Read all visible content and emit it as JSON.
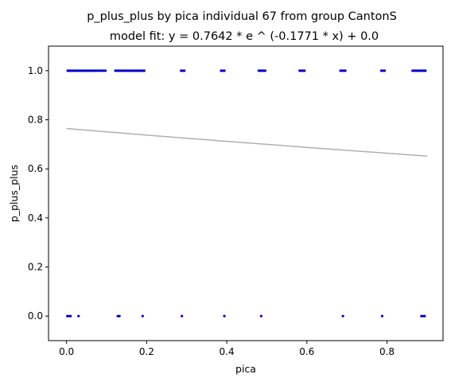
{
  "chart_data": {
    "type": "scatter",
    "title": "p_plus_plus by pica individual 67 from group CantonS",
    "subtitle": "model fit: y = 0.7642 * e ^ (-0.1771 * x) + 0.0",
    "xlabel": "pica",
    "ylabel": "p_plus_plus",
    "xlim": [
      -0.045,
      0.94
    ],
    "ylim": [
      -0.1,
      1.1
    ],
    "xticks": [
      0.0,
      0.2,
      0.4,
      0.6,
      0.8
    ],
    "xtick_labels": [
      "0.0",
      "0.2",
      "0.4",
      "0.6",
      "0.8"
    ],
    "yticks": [
      0.0,
      0.2,
      0.4,
      0.6,
      0.8,
      1.0
    ],
    "ytick_labels": [
      "0.0",
      "0.2",
      "0.4",
      "0.6",
      "0.8",
      "1.0"
    ],
    "grid": false,
    "colors": {
      "points": "#0000cc",
      "fit": "#b0b0b0"
    },
    "series": [
      {
        "type": "scatter",
        "x": [
          0.003,
          0.006,
          0.009,
          0.012,
          0.016,
          0.02,
          0.024,
          0.028,
          0.032,
          0.036,
          0.04,
          0.044,
          0.048,
          0.052,
          0.056,
          0.06,
          0.064,
          0.068,
          0.072,
          0.077,
          0.082,
          0.087,
          0.092,
          0.097,
          0.122,
          0.126,
          0.13,
          0.134,
          0.138,
          0.142,
          0.146,
          0.15,
          0.154,
          0.158,
          0.162,
          0.166,
          0.17,
          0.174,
          0.178,
          0.182,
          0.186,
          0.19,
          0.194,
          0.286,
          0.29,
          0.294,
          0.386,
          0.39,
          0.394,
          0.48,
          0.484,
          0.488,
          0.492,
          0.496,
          0.582,
          0.586,
          0.59,
          0.594,
          0.684,
          0.688,
          0.692,
          0.696,
          0.786,
          0.79,
          0.794,
          0.864,
          0.868,
          0.872,
          0.876,
          0.88,
          0.884,
          0.888,
          0.892,
          0.896,
          0.002,
          0.006,
          0.01,
          0.03,
          0.128,
          0.132,
          0.19,
          0.288,
          0.394,
          0.486,
          0.69,
          0.788,
          0.886,
          0.89,
          0.894
        ],
        "y": [
          1,
          1,
          1,
          1,
          1,
          1,
          1,
          1,
          1,
          1,
          1,
          1,
          1,
          1,
          1,
          1,
          1,
          1,
          1,
          1,
          1,
          1,
          1,
          1,
          1,
          1,
          1,
          1,
          1,
          1,
          1,
          1,
          1,
          1,
          1,
          1,
          1,
          1,
          1,
          1,
          1,
          1,
          1,
          1,
          1,
          1,
          1,
          1,
          1,
          1,
          1,
          1,
          1,
          1,
          1,
          1,
          1,
          1,
          1,
          1,
          1,
          1,
          1,
          1,
          1,
          1,
          1,
          1,
          1,
          1,
          1,
          1,
          1,
          1,
          0,
          0,
          0,
          0,
          0,
          0,
          0,
          0,
          0,
          0,
          0,
          0,
          0,
          0,
          0
        ]
      },
      {
        "type": "line",
        "x": [
          0.0,
          0.1,
          0.2,
          0.3,
          0.4,
          0.5,
          0.6,
          0.7,
          0.8,
          0.9
        ],
        "y": [
          0.7642,
          0.7508,
          0.7377,
          0.7248,
          0.7121,
          0.6997,
          0.6874,
          0.6754,
          0.6636,
          0.652
        ]
      }
    ]
  }
}
